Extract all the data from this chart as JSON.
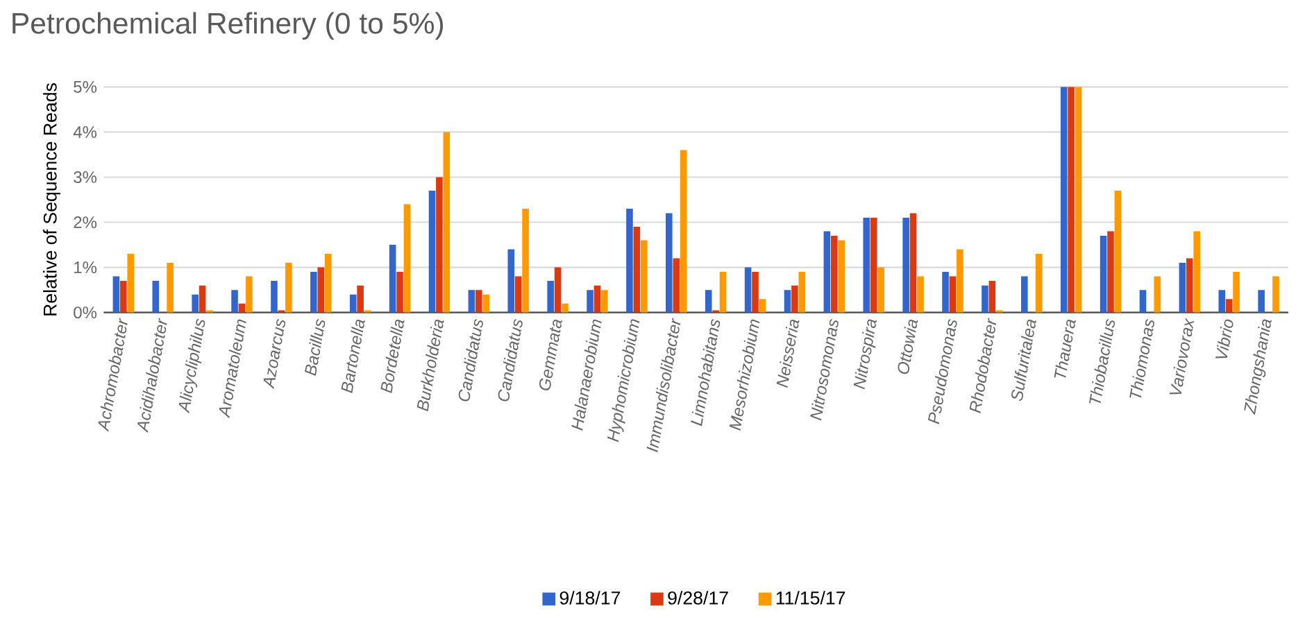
{
  "chart_data": {
    "type": "bar",
    "title": "Petrochemical Refinery (0 to 5%)",
    "ylabel": "Relative  of Sequence Reads",
    "categories": [
      "Achromobacter",
      "Acidihalobacter",
      "Alicycliphilus",
      "Aromatoleum",
      "Azoarcus",
      "Bacillus",
      "Bartonella",
      "Bordetella",
      "Burkholderia",
      "Candidatus",
      "Candidatus",
      "Gemmata",
      "Halanaerobium",
      "Hyphomicrobium",
      "Immundisolibacter",
      "Limnohabitans",
      "Mesorhizobium",
      "Neisseria",
      "Nitrosomonas",
      "Nitrospira",
      "Ottowia",
      "Pseudomonas",
      "Rhodobacter",
      "Sulfuritalea",
      "Thauera",
      "Thiobacillus",
      "Thiomonas",
      "Variovorax",
      "Vibrio",
      "Zhongshania"
    ],
    "series": [
      {
        "name": "9/18/17",
        "color": "#3366cc",
        "values": [
          0.8,
          0.7,
          0.4,
          0.5,
          0.7,
          0.9,
          0.4,
          1.5,
          2.7,
          0.5,
          1.4,
          0.7,
          0.5,
          2.3,
          2.2,
          0.5,
          1.0,
          0.5,
          1.8,
          2.1,
          2.1,
          0.9,
          0.6,
          0.8,
          5,
          1.7,
          0.5,
          1.1,
          0.5,
          0.5
        ]
      },
      {
        "name": "9/28/17",
        "color": "#dc3912",
        "values": [
          0.7,
          0,
          0.6,
          0.2,
          0.05,
          1.0,
          0.6,
          0.9,
          3.0,
          0.5,
          0.8,
          1.0,
          0.6,
          1.9,
          1.2,
          0.05,
          0.9,
          0.6,
          1.7,
          2.1,
          2.2,
          0.8,
          0.7,
          0,
          5,
          1.8,
          0,
          1.2,
          0.3,
          0
        ]
      },
      {
        "name": "11/15/17",
        "color": "#ff9900",
        "values": [
          1.3,
          1.1,
          0.05,
          0.8,
          1.1,
          1.3,
          0.05,
          2.4,
          4.0,
          0.4,
          2.3,
          0.2,
          0.5,
          1.6,
          3.6,
          0.9,
          0.3,
          0.9,
          1.6,
          1.0,
          0.8,
          1.4,
          0.05,
          1.3,
          5,
          2.7,
          0.8,
          1.8,
          0.9,
          0.8
        ]
      }
    ],
    "ylim": [
      0,
      5
    ],
    "yticks": [
      {
        "value": 0,
        "label": "0%"
      },
      {
        "value": 1,
        "label": "1%"
      },
      {
        "value": 2,
        "label": "2%"
      },
      {
        "value": 3,
        "label": "3%"
      },
      {
        "value": 4,
        "label": "4%"
      },
      {
        "value": 5,
        "label": "5%"
      }
    ],
    "grid": "y",
    "legend": "bottom"
  }
}
